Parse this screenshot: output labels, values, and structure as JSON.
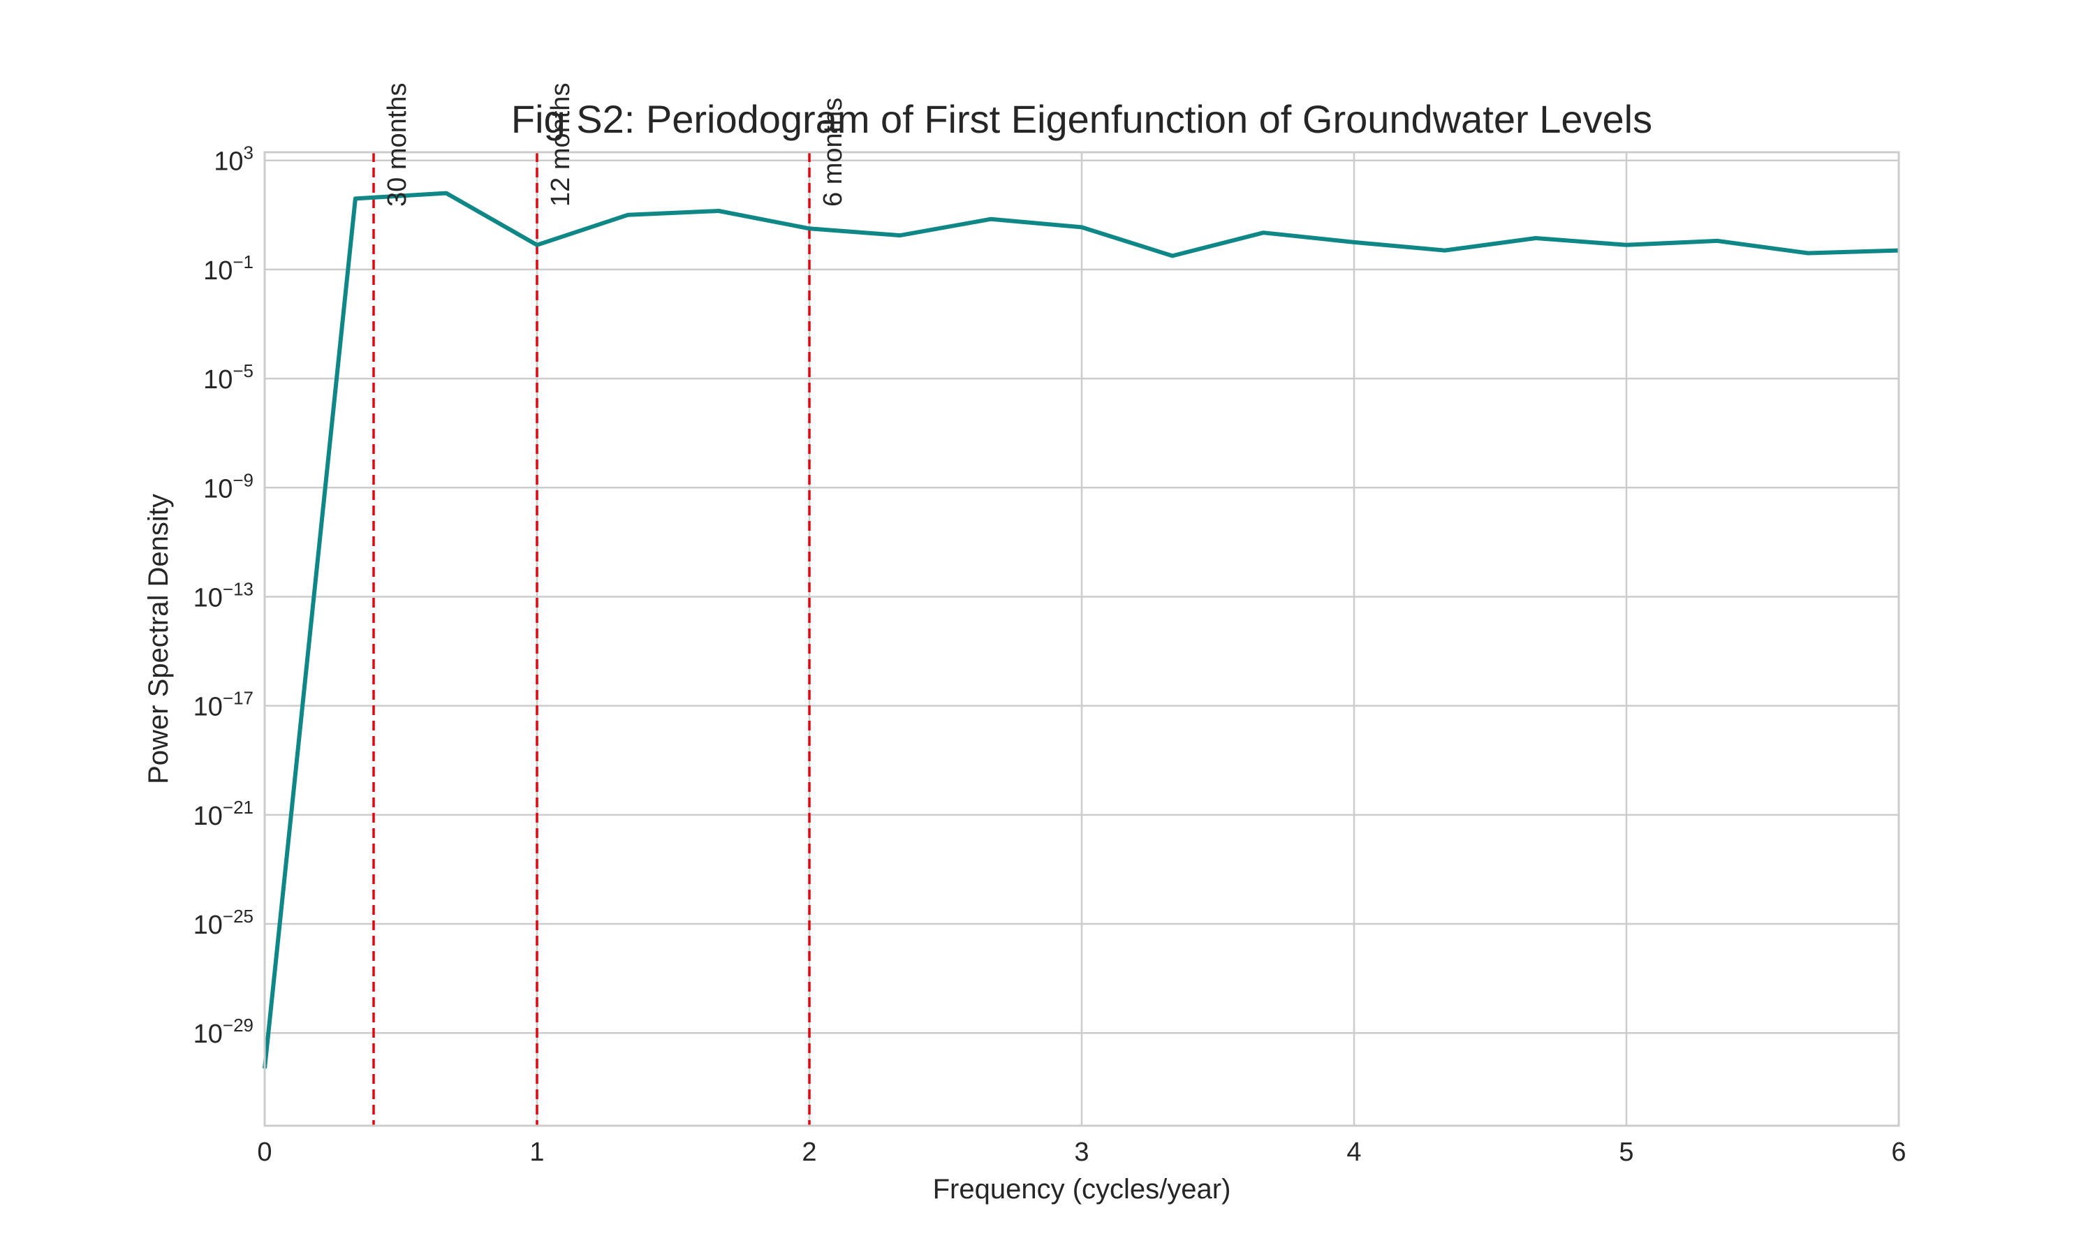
{
  "chart_data": {
    "type": "line",
    "title": "Fig S2: Periodogram of First Eigenfunction of Groundwater Levels",
    "xlabel": "Frequency (cycles/year)",
    "ylabel": "Power Spectral Density",
    "xlim": [
      0,
      6
    ],
    "ylim_log10": [
      -32.4,
      3.3
    ],
    "y_scale": "log",
    "x_ticks": [
      {
        "value": 0,
        "label": "0"
      },
      {
        "value": 1,
        "label": "1"
      },
      {
        "value": 2,
        "label": "2"
      },
      {
        "value": 3,
        "label": "3"
      },
      {
        "value": 4,
        "label": "4"
      },
      {
        "value": 5,
        "label": "5"
      },
      {
        "value": 6,
        "label": "6"
      }
    ],
    "y_ticks": [
      {
        "exp": 3,
        "base": "10",
        "sup": "3"
      },
      {
        "exp": -1,
        "base": "10",
        "sup": "−1"
      },
      {
        "exp": -5,
        "base": "10",
        "sup": "−5"
      },
      {
        "exp": -9,
        "base": "10",
        "sup": "−9"
      },
      {
        "exp": -13,
        "base": "10",
        "sup": "−13"
      },
      {
        "exp": -17,
        "base": "10",
        "sup": "−17"
      },
      {
        "exp": -21,
        "base": "10",
        "sup": "−21"
      },
      {
        "exp": -25,
        "base": "10",
        "sup": "−25"
      },
      {
        "exp": -29,
        "base": "10",
        "sup": "−29"
      }
    ],
    "grid": true,
    "series": [
      {
        "color": "#0f8787",
        "x": [
          0,
          0.333,
          0.667,
          1.0,
          1.333,
          1.667,
          2.0,
          2.333,
          2.667,
          3.0,
          3.333,
          3.667,
          4.0,
          4.333,
          4.667,
          5.0,
          5.333,
          5.667,
          6.0
        ],
        "log10_y": [
          -30.3,
          1.6,
          1.8,
          -0.1,
          1.0,
          1.15,
          0.5,
          0.25,
          0.85,
          0.55,
          -0.5,
          0.35,
          0.0,
          -0.3,
          0.15,
          -0.1,
          0.05,
          -0.4,
          -0.3
        ]
      }
    ],
    "reference_lines": [
      {
        "x": 0.4,
        "label": "30 months",
        "color": "#e8000b",
        "style": "dashed"
      },
      {
        "x": 1.0,
        "label": "12 months",
        "color": "#e8000b",
        "style": "dashed"
      },
      {
        "x": 2.0,
        "label": "6 months",
        "color": "#e8000b",
        "style": "dashed"
      }
    ]
  }
}
